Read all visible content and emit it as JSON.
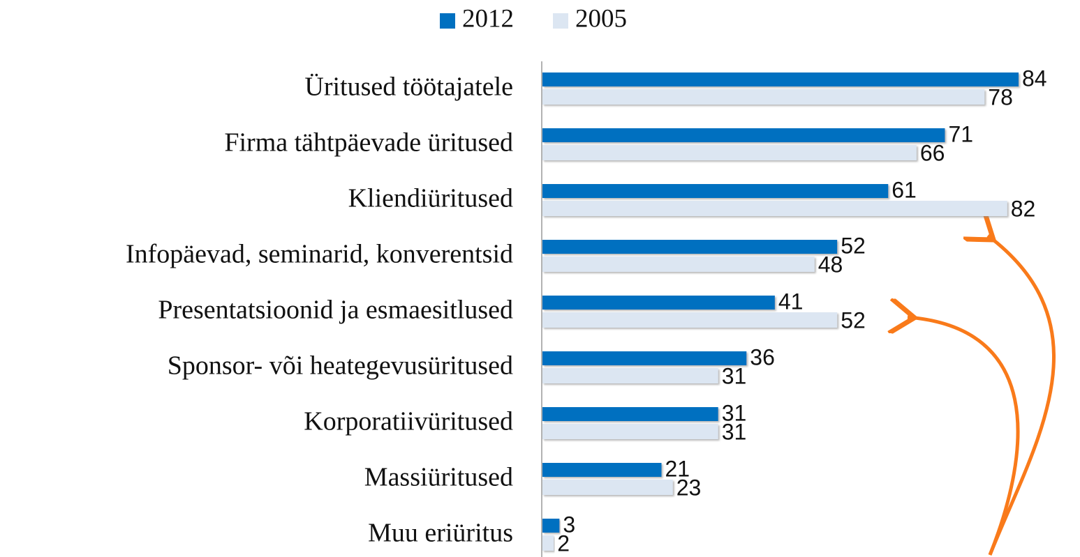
{
  "chart_data": {
    "type": "bar",
    "orientation": "horizontal",
    "categories": [
      "Üritused töötajatele",
      "Firma tähtpäevade üritused",
      "Kliendiüritused",
      "Infopäevad, seminarid, konverentsid",
      "Presentatsioonid ja esmaesitlused",
      "Sponsor- või heategevusüritused",
      "Korporatiivüritused",
      "Massiüritused",
      "Muu eriüritus"
    ],
    "series": [
      {
        "name": "2012",
        "color": "#0070c0",
        "values": [
          84,
          71,
          61,
          52,
          41,
          36,
          31,
          21,
          3
        ]
      },
      {
        "name": "2005",
        "color": "#dce6f2",
        "values": [
          78,
          66,
          82,
          48,
          52,
          31,
          31,
          23,
          2
        ]
      }
    ],
    "legend": "top"
  }
}
